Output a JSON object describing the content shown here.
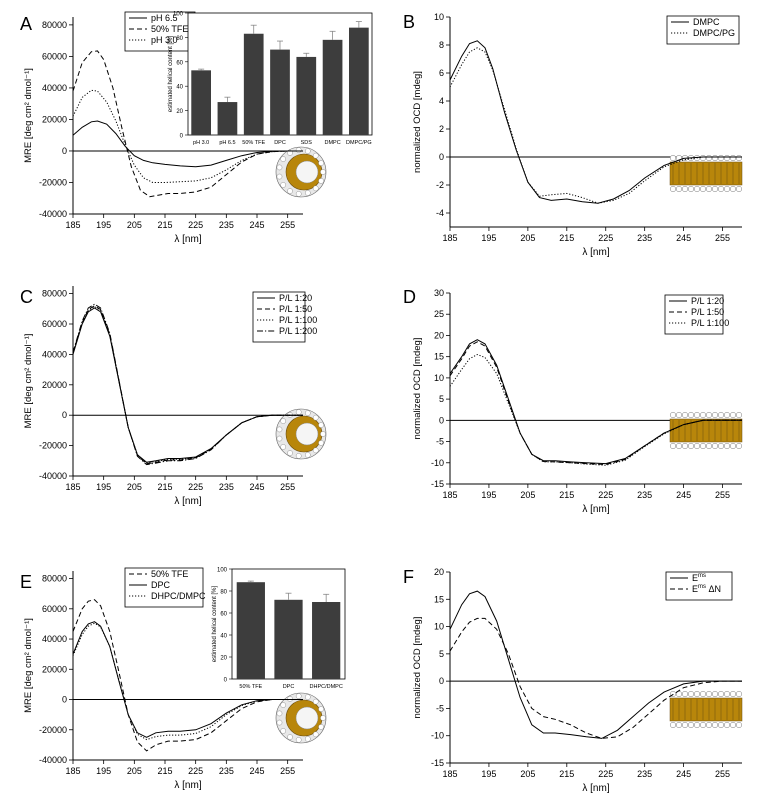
{
  "colors": {
    "axis": "#000000",
    "bar": "#3d3d3d",
    "lipid_head": "#ffffff",
    "lipid_core": "#b8860b"
  },
  "chart_data": [
    {
      "id": "A",
      "panel_label": "A",
      "type": "line",
      "ylabel": "MRE [deg cm² dmol⁻¹]",
      "xlabel": "λ [nm]",
      "xlim": [
        185,
        260
      ],
      "ylim": [
        -40000,
        85000
      ],
      "xticks": [
        185,
        195,
        205,
        215,
        225,
        235,
        245,
        255
      ],
      "yticks": [
        -40000,
        -20000,
        0,
        20000,
        40000,
        60000,
        80000
      ],
      "legend_position": "top-left",
      "icon": "micelle-icon",
      "series": [
        {
          "name": "pH 6.5",
          "style": "solid",
          "x": [
            185,
            188,
            191,
            193,
            196,
            199,
            202,
            205,
            208,
            211,
            215,
            220,
            225,
            230,
            235,
            240,
            245,
            250,
            255,
            260
          ],
          "y": [
            10000,
            15000,
            18500,
            19000,
            17000,
            11000,
            3000,
            -3000,
            -6000,
            -7500,
            -8500,
            -9500,
            -10000,
            -9000,
            -6000,
            -3000,
            -1000,
            -300,
            0,
            0
          ]
        },
        {
          "name": "50% TFE",
          "style": "dashed",
          "x": [
            185,
            188,
            191,
            193,
            195,
            198,
            201,
            204,
            207,
            210,
            213,
            216,
            220,
            225,
            230,
            235,
            240,
            245,
            250,
            255,
            260
          ],
          "y": [
            38000,
            56000,
            63000,
            63500,
            58000,
            40000,
            14000,
            -10000,
            -25000,
            -29000,
            -28000,
            -27000,
            -27000,
            -26000,
            -23000,
            -15000,
            -7000,
            -2000,
            -500,
            0,
            0
          ]
        },
        {
          "name": "pH 3.0",
          "style": "dotted",
          "x": [
            185,
            188,
            191,
            193,
            196,
            199,
            202,
            205,
            208,
            211,
            215,
            220,
            225,
            230,
            235,
            240,
            245,
            250,
            255,
            260
          ],
          "y": [
            22000,
            34000,
            38500,
            38000,
            31000,
            19000,
            4000,
            -9000,
            -17000,
            -20000,
            -20000,
            -19500,
            -19000,
            -17000,
            -12000,
            -6000,
            -2000,
            -500,
            0,
            0
          ]
        }
      ],
      "inset": {
        "type": "bar",
        "ylabel": "estimated helical content [%]",
        "categories": [
          "pH 3.0",
          "pH 6.5",
          "50% TFE",
          "DPC",
          "SDS",
          "DMPC",
          "DMPC/PG"
        ],
        "values": [
          53,
          27,
          83,
          70,
          64,
          78,
          88
        ],
        "errors": [
          1,
          4,
          7,
          7,
          3,
          7,
          5
        ],
        "ylim": [
          0,
          100
        ],
        "yticks": [
          0,
          20,
          40,
          60,
          80,
          100
        ]
      }
    },
    {
      "id": "B",
      "panel_label": "B",
      "type": "line",
      "ylabel": "normalized OCD [mdeg]",
      "xlabel": "λ [nm]",
      "xlim": [
        185,
        260
      ],
      "ylim": [
        -5,
        10
      ],
      "xticks": [
        185,
        195,
        205,
        215,
        225,
        235,
        245,
        255
      ],
      "yticks": [
        -4,
        -2,
        0,
        2,
        4,
        6,
        8,
        10
      ],
      "legend_position": "top-right",
      "icon": "bilayer-icon",
      "series": [
        {
          "name": "DMPC",
          "style": "solid",
          "x": [
            185,
            188,
            190,
            192,
            194,
            196,
            199,
            202,
            205,
            208,
            211,
            215,
            219,
            223,
            227,
            231,
            235,
            240,
            245,
            250,
            255,
            260
          ],
          "y": [
            5.5,
            7.2,
            8.1,
            8.3,
            7.8,
            6.3,
            3.2,
            0.5,
            -1.8,
            -2.9,
            -3.1,
            -3.0,
            -3.2,
            -3.3,
            -3.0,
            -2.4,
            -1.5,
            -0.6,
            -0.1,
            0,
            0,
            0
          ]
        },
        {
          "name": "DMPC/PG",
          "style": "dotted",
          "x": [
            185,
            188,
            190,
            192,
            194,
            196,
            199,
            202,
            205,
            208,
            211,
            215,
            219,
            223,
            227,
            231,
            235,
            240,
            245,
            250,
            255,
            260
          ],
          "y": [
            5.0,
            6.6,
            7.5,
            7.8,
            7.5,
            6.2,
            3.4,
            0.6,
            -1.8,
            -2.8,
            -2.7,
            -2.6,
            -2.9,
            -3.3,
            -3.1,
            -2.6,
            -1.7,
            -0.7,
            -0.2,
            0,
            0,
            0
          ]
        }
      ]
    },
    {
      "id": "C",
      "panel_label": "C",
      "type": "line",
      "ylabel": "MRE [deg cm² dmol⁻¹]",
      "xlabel": "λ [nm]",
      "xlim": [
        185,
        260
      ],
      "ylim": [
        -40000,
        85000
      ],
      "xticks": [
        185,
        195,
        205,
        215,
        225,
        235,
        245,
        255
      ],
      "yticks": [
        -40000,
        -20000,
        0,
        20000,
        40000,
        60000,
        80000
      ],
      "legend_position": "top-right",
      "icon": "micelle-icon",
      "series": [
        {
          "name": "P/L 1:20",
          "style": "solid",
          "x": [
            185,
            188,
            190,
            192,
            194,
            197,
            200,
            203,
            206,
            209,
            212,
            216,
            220,
            225,
            230,
            235,
            240,
            245,
            250,
            255,
            260
          ],
          "y": [
            40000,
            60000,
            68000,
            70500,
            68000,
            52000,
            22000,
            -8000,
            -26000,
            -31000,
            -30000,
            -28500,
            -28500,
            -27500,
            -22000,
            -13000,
            -5000,
            -1000,
            0,
            0,
            0
          ]
        },
        {
          "name": "P/L 1:50",
          "style": "dashed",
          "x": [
            185,
            188,
            190,
            192,
            194,
            197,
            200,
            203,
            206,
            209,
            212,
            216,
            220,
            225,
            230,
            235,
            240,
            245,
            250,
            255,
            260
          ],
          "y": [
            41000,
            61000,
            69500,
            72000,
            69500,
            53000,
            22500,
            -8000,
            -26500,
            -32000,
            -31000,
            -29500,
            -29500,
            -28000,
            -22500,
            -13000,
            -5000,
            -1000,
            0,
            0,
            0
          ]
        },
        {
          "name": "P/L 1:100",
          "style": "dotted",
          "x": [
            185,
            188,
            190,
            192,
            194,
            197,
            200,
            203,
            206,
            209,
            212,
            216,
            220,
            225,
            230,
            235,
            240,
            245,
            250,
            255,
            260
          ],
          "y": [
            40500,
            60500,
            69000,
            71500,
            69000,
            52500,
            22000,
            -8000,
            -26000,
            -31500,
            -30500,
            -29000,
            -29000,
            -27800,
            -22200,
            -13000,
            -5000,
            -1000,
            0,
            0,
            0
          ]
        },
        {
          "name": "P/L 1:200",
          "style": "dashdot",
          "x": [
            185,
            188,
            190,
            192,
            194,
            197,
            200,
            203,
            206,
            209,
            212,
            216,
            220,
            225,
            230,
            235,
            240,
            245,
            250,
            255,
            260
          ],
          "y": [
            41500,
            62000,
            70500,
            73000,
            70500,
            54000,
            23000,
            -8000,
            -27000,
            -32500,
            -31500,
            -30000,
            -30000,
            -28500,
            -22800,
            -13000,
            -5000,
            -1000,
            0,
            0,
            0
          ]
        }
      ]
    },
    {
      "id": "D",
      "panel_label": "D",
      "type": "line",
      "ylabel": "normalized OCD [mdeg]",
      "xlabel": "λ [nm]",
      "xlim": [
        185,
        260
      ],
      "ylim": [
        -15,
        30
      ],
      "xticks": [
        185,
        195,
        205,
        215,
        225,
        235,
        245,
        255
      ],
      "yticks": [
        -15,
        -10,
        -5,
        0,
        5,
        10,
        15,
        20,
        25,
        30
      ],
      "legend_position": "top-right",
      "icon": "bilayer-icon",
      "series": [
        {
          "name": "P/L 1:20",
          "style": "solid",
          "x": [
            185,
            188,
            190,
            192,
            194,
            197,
            200,
            203,
            206,
            209,
            212,
            216,
            220,
            225,
            230,
            235,
            240,
            245,
            250,
            255,
            260
          ],
          "y": [
            11,
            15,
            18,
            19,
            18,
            13,
            5,
            -3,
            -8,
            -9.5,
            -9.5,
            -9.8,
            -10,
            -10.2,
            -9,
            -6,
            -3,
            -1,
            0,
            0,
            0
          ]
        },
        {
          "name": "P/L 1:50",
          "style": "dashed",
          "x": [
            185,
            188,
            190,
            192,
            194,
            197,
            200,
            203,
            206,
            209,
            212,
            216,
            220,
            225,
            230,
            235,
            240,
            245,
            250,
            255,
            260
          ],
          "y": [
            10.5,
            14.5,
            17.5,
            18.5,
            17.5,
            12.5,
            4.5,
            -3,
            -8,
            -9.7,
            -9.8,
            -10,
            -10.2,
            -10.4,
            -9.2,
            -6,
            -3,
            -1,
            0,
            0,
            0
          ]
        },
        {
          "name": "P/L 1:100",
          "style": "dotted",
          "x": [
            185,
            188,
            190,
            192,
            194,
            197,
            200,
            203,
            206,
            209,
            212,
            216,
            220,
            225,
            230,
            235,
            240,
            245,
            250,
            255,
            260
          ],
          "y": [
            8,
            12,
            14.5,
            15.5,
            14.8,
            11,
            4,
            -3,
            -8,
            -9.8,
            -9.8,
            -10,
            -10.3,
            -10.6,
            -9.4,
            -6.2,
            -3.2,
            -1,
            0,
            0,
            0
          ]
        }
      ]
    },
    {
      "id": "E",
      "panel_label": "E",
      "type": "line",
      "ylabel": "MRE [deg cm² dmol⁻¹]",
      "xlabel": "λ [nm]",
      "xlim": [
        185,
        260
      ],
      "ylim": [
        -40000,
        85000
      ],
      "xticks": [
        185,
        195,
        205,
        215,
        225,
        235,
        245,
        255
      ],
      "yticks": [
        -40000,
        -20000,
        0,
        20000,
        40000,
        60000,
        80000
      ],
      "legend_position": "top-left",
      "icon": "micelle-icon",
      "series": [
        {
          "name": "50% TFE",
          "style": "dashed",
          "x": [
            185,
            188,
            190,
            192,
            194,
            197,
            200,
            203,
            206,
            209,
            212,
            216,
            220,
            225,
            230,
            235,
            240,
            245,
            250,
            255,
            260
          ],
          "y": [
            45000,
            60000,
            65000,
            66000,
            62000,
            45000,
            18000,
            -10000,
            -28000,
            -34000,
            -30000,
            -27500,
            -27500,
            -26500,
            -22000,
            -14000,
            -6000,
            -1500,
            0,
            0,
            0
          ]
        },
        {
          "name": "DPC",
          "style": "solid",
          "x": [
            185,
            188,
            190,
            192,
            194,
            197,
            200,
            203,
            206,
            209,
            212,
            216,
            220,
            225,
            230,
            235,
            240,
            245,
            250,
            255,
            260
          ],
          "y": [
            30000,
            45000,
            50000,
            51500,
            48500,
            35000,
            12000,
            -10000,
            -22000,
            -25000,
            -22000,
            -21000,
            -21000,
            -20000,
            -16000,
            -9000,
            -3500,
            -800,
            0,
            0,
            0
          ]
        },
        {
          "name": "DHPC/DMPC",
          "style": "dotted",
          "x": [
            185,
            188,
            190,
            192,
            194,
            197,
            200,
            203,
            206,
            209,
            212,
            216,
            220,
            225,
            230,
            235,
            240,
            245,
            250,
            255,
            260
          ],
          "y": [
            29000,
            43000,
            48500,
            50500,
            48000,
            35000,
            12500,
            -10000,
            -23000,
            -26500,
            -24500,
            -23500,
            -23500,
            -22500,
            -18000,
            -10000,
            -4000,
            -1000,
            0,
            0,
            0
          ]
        }
      ],
      "inset": {
        "type": "bar",
        "ylabel": "estimated helical content [%]",
        "categories": [
          "50% TFE",
          "DPC",
          "DHPC/DMPC"
        ],
        "values": [
          88,
          72,
          70
        ],
        "errors": [
          1,
          6,
          7
        ],
        "ylim": [
          0,
          100
        ],
        "yticks": [
          0,
          20,
          40,
          60,
          80,
          100
        ]
      }
    },
    {
      "id": "F",
      "panel_label": "F",
      "type": "line",
      "ylabel": "normalized OCD [mdeg]",
      "xlabel": "λ [nm]",
      "xlim": [
        185,
        260
      ],
      "ylim": [
        -15,
        20
      ],
      "xticks": [
        185,
        195,
        205,
        215,
        225,
        235,
        245,
        255
      ],
      "yticks": [
        -15,
        -10,
        -5,
        0,
        5,
        10,
        15,
        20
      ],
      "legend_position": "top-right",
      "icon": "bilayer-icon",
      "series": [
        {
          "name": "E",
          "sup": "ms",
          "suffix": "",
          "style": "solid",
          "x": [
            185,
            188,
            190,
            192,
            194,
            197,
            200,
            203,
            206,
            209,
            212,
            216,
            220,
            224,
            228,
            232,
            236,
            240,
            245,
            250,
            255,
            260
          ],
          "y": [
            9.5,
            14,
            16,
            16.5,
            15.5,
            11,
            4,
            -3,
            -8,
            -9.5,
            -9.5,
            -9.8,
            -10.2,
            -10.5,
            -9,
            -6.5,
            -4,
            -2,
            -0.5,
            0,
            0,
            0
          ]
        },
        {
          "name": "E",
          "sup": "ms",
          "suffix": "ΔN",
          "style": "dashed",
          "x": [
            185,
            188,
            190,
            192,
            194,
            197,
            200,
            203,
            206,
            209,
            212,
            216,
            220,
            224,
            228,
            232,
            236,
            240,
            245,
            250,
            255,
            260
          ],
          "y": [
            5.5,
            9,
            10.8,
            11.5,
            11.5,
            9.5,
            5,
            -1,
            -5,
            -6.5,
            -7,
            -8,
            -9.5,
            -10.5,
            -10.2,
            -8.5,
            -6,
            -3.5,
            -1.2,
            -0.3,
            0,
            0
          ]
        }
      ]
    }
  ]
}
